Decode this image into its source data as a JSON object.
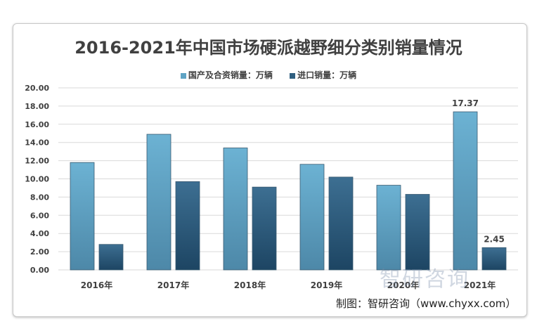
{
  "chart_data": {
    "type": "bar",
    "title": "2016-2021年中国市场硬派越野细分类别销量情况",
    "categories": [
      "2016年",
      "2017年",
      "2018年",
      "2019年",
      "2020年",
      "2021年"
    ],
    "series": [
      {
        "name": "国产及合资销量：万辆",
        "color": "#5fa3c4",
        "values": [
          11.8,
          14.9,
          13.4,
          11.6,
          9.3,
          17.37
        ]
      },
      {
        "name": "进口销量：万辆",
        "color": "#2f5f80",
        "values": [
          2.8,
          9.7,
          9.1,
          10.2,
          8.3,
          2.45
        ]
      }
    ],
    "data_labels": {
      "5": [
        "17.37",
        "2.45"
      ]
    },
    "yticks": [
      "0.00",
      "2.00",
      "4.00",
      "6.00",
      "8.00",
      "10.00",
      "12.00",
      "14.00",
      "16.00",
      "18.00",
      "20.00"
    ],
    "ylim": [
      0,
      20
    ],
    "grid": true,
    "legend_position": "top"
  },
  "credit": "制图：智研咨询（www.chyxx.com）",
  "watermark": "智研咨询"
}
